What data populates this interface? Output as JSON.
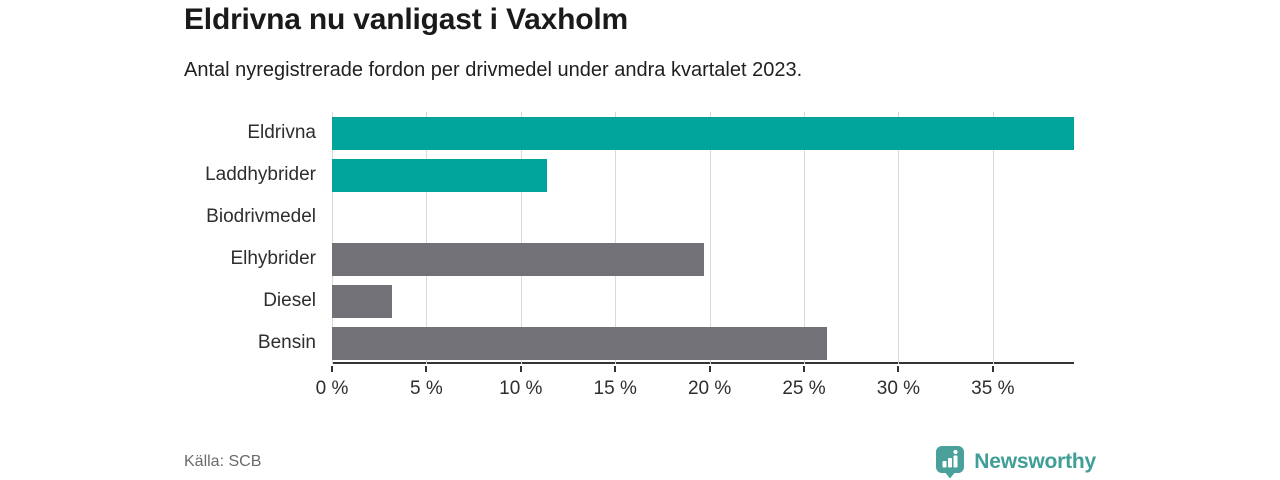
{
  "header": {
    "title": "Eldrivna nu vanligast i Vaxholm",
    "subtitle": "Antal nyregistrerade fordon per drivmedel under andra kvartalet 2023."
  },
  "footer": {
    "source": "Källa: SCB",
    "brand": "Newsworthy"
  },
  "colors": {
    "teal_bar": "#00a49b",
    "gray_bar": "#737178",
    "gridline": "#d9d9d9",
    "axis": "#333333",
    "logo_icon": "#4aa09a",
    "logo_text": "#3f9e97"
  },
  "chart_data": {
    "type": "bar",
    "orientation": "horizontal",
    "title": "Eldrivna nu vanligast i Vaxholm",
    "subtitle": "Antal nyregistrerade fordon per drivmedel under andra kvartalet 2023.",
    "categories": [
      "Eldrivna",
      "Laddhybrider",
      "Biodrivmedel",
      "Elhybrider",
      "Diesel",
      "Bensin"
    ],
    "values": [
      39.3,
      11.4,
      0,
      19.7,
      3.2,
      26.2
    ],
    "unit": "%",
    "bar_colors": [
      "#00a49b",
      "#00a49b",
      "#737178",
      "#737178",
      "#737178",
      "#737178"
    ],
    "xlim": [
      0,
      39.3
    ],
    "xticks": [
      {
        "value": 0,
        "label": "0 %"
      },
      {
        "value": 5,
        "label": "5 %"
      },
      {
        "value": 10,
        "label": "10 %"
      },
      {
        "value": 15,
        "label": "15 %"
      },
      {
        "value": 20,
        "label": "20 %"
      },
      {
        "value": 25,
        "label": "25 %"
      },
      {
        "value": 30,
        "label": "30 %"
      },
      {
        "value": 35,
        "label": "35 %"
      }
    ],
    "grid": "vertical-only",
    "legend": "none",
    "source": "Källa: SCB"
  }
}
